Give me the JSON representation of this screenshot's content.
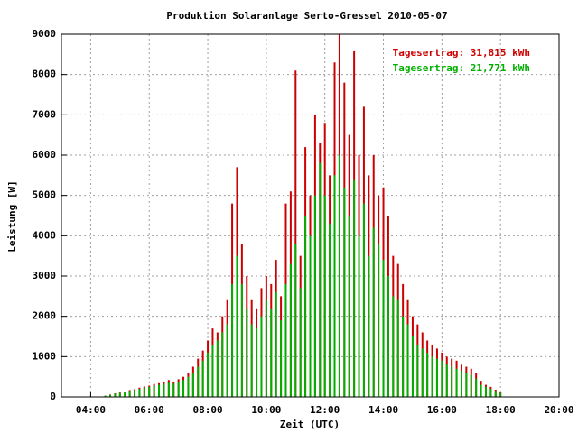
{
  "chart_data": {
    "type": "impulse",
    "title": "Produktion Solaranlage Serto-Gressel 2010-05-07",
    "x_label": "Zeit (UTC)",
    "y_label": "Leistung [W]",
    "x": [
      270,
      280,
      290,
      300,
      310,
      320,
      330,
      340,
      350,
      360,
      370,
      380,
      390,
      400,
      410,
      420,
      430,
      440,
      450,
      460,
      470,
      480,
      490,
      500,
      510,
      520,
      530,
      540,
      550,
      560,
      570,
      580,
      590,
      600,
      610,
      620,
      630,
      640,
      650,
      660,
      670,
      680,
      690,
      700,
      710,
      720,
      730,
      740,
      750,
      760,
      770,
      780,
      790,
      800,
      810,
      820,
      830,
      840,
      850,
      860,
      870,
      880,
      890,
      900,
      910,
      920,
      930,
      940,
      950,
      960,
      970,
      980,
      990,
      1000,
      1010,
      1020,
      1030,
      1040,
      1050,
      1060,
      1070,
      1080
    ],
    "series": [
      {
        "name": "Tagesertrag: 31,815 kWh",
        "color": "#cc0000",
        "values": [
          30,
          60,
          90,
          110,
          130,
          170,
          190,
          230,
          260,
          280,
          320,
          340,
          360,
          420,
          380,
          440,
          500,
          600,
          750,
          950,
          1150,
          1400,
          1700,
          1600,
          2000,
          2400,
          4800,
          5700,
          3800,
          3000,
          2400,
          2200,
          2700,
          3000,
          2800,
          3400,
          2500,
          4800,
          5100,
          8100,
          3500,
          6200,
          5000,
          7000,
          6300,
          6800,
          5500,
          8300,
          9000,
          7800,
          6500,
          8600,
          6000,
          7200,
          5500,
          6000,
          5000,
          5200,
          4500,
          3500,
          3300,
          2800,
          2400,
          2000,
          1800,
          1600,
          1400,
          1300,
          1200,
          1100,
          1000,
          950,
          900,
          800,
          750,
          700,
          600,
          400,
          300,
          250,
          180,
          120
        ]
      },
      {
        "name": "Tagesertrag: 21,771 kWh",
        "color": "#00b000",
        "values": [
          30,
          50,
          80,
          100,
          120,
          150,
          170,
          200,
          230,
          250,
          280,
          300,
          320,
          350,
          330,
          380,
          420,
          500,
          600,
          750,
          900,
          1100,
          1300,
          1400,
          1600,
          1800,
          2800,
          3500,
          2800,
          2200,
          1800,
          1700,
          2000,
          2400,
          2200,
          2600,
          1900,
          2800,
          3300,
          3800,
          2700,
          4500,
          4000,
          5000,
          5800,
          5000,
          4300,
          5500,
          6000,
          5200,
          4500,
          5400,
          4000,
          4800,
          3500,
          4200,
          3800,
          3400,
          3000,
          2500,
          2400,
          2000,
          1800,
          1500,
          1300,
          1200,
          1100,
          1000,
          950,
          900,
          800,
          750,
          700,
          650,
          600,
          550,
          450,
          300,
          250,
          200,
          150,
          100
        ]
      }
    ],
    "xlim": [
      180,
      1200
    ],
    "xticks": [
      {
        "value": 240,
        "label": "04:00"
      },
      {
        "value": 360,
        "label": "06:00"
      },
      {
        "value": 480,
        "label": "08:00"
      },
      {
        "value": 600,
        "label": "10:00"
      },
      {
        "value": 720,
        "label": "12:00"
      },
      {
        "value": 840,
        "label": "14:00"
      },
      {
        "value": 960,
        "label": "16:00"
      },
      {
        "value": 1080,
        "label": "18:00"
      },
      {
        "value": 1200,
        "label": "20:00"
      }
    ],
    "ylim": [
      0,
      9000
    ],
    "yticks": [
      0,
      1000,
      2000,
      3000,
      4000,
      5000,
      6000,
      7000,
      8000,
      9000
    ],
    "grid": true,
    "legend": "top-right"
  }
}
